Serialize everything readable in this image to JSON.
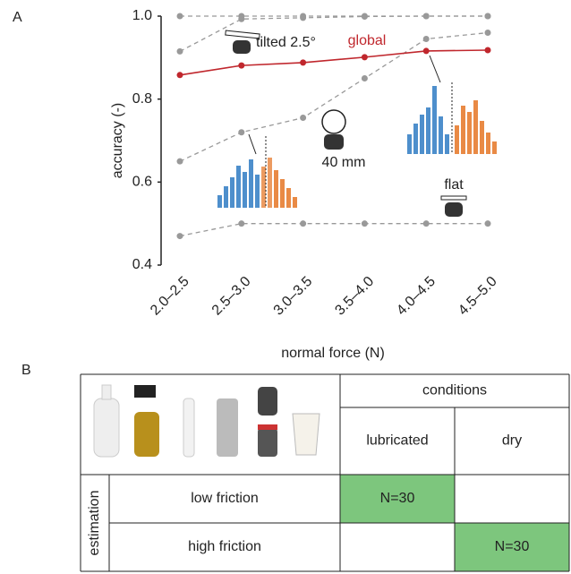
{
  "panel_labels": [
    "A",
    "B"
  ],
  "chart_data": {
    "type": "line",
    "x_label": "normal force (N)",
    "y_label": "accuracy (-)",
    "categories": [
      "2.0–2.5",
      "2.5–3.0",
      "3.0–3.5",
      "3.5–4.0",
      "4.0–4.5",
      "4.5–5.0"
    ],
    "ylim": [
      0.4,
      1.0
    ],
    "yticks": [
      0.4,
      0.6,
      0.8,
      {
        "value": 1.0,
        "label": "1.0"
      }
    ],
    "series": [
      {
        "color": "#999999",
        "dashed": true,
        "values": [
          1.0,
          1.0,
          1.0,
          1.0,
          1.0,
          1.0
        ]
      },
      {
        "color": "#999999",
        "dashed": true,
        "values": [
          0.915,
          0.993,
          0.996,
          0.999,
          1.0,
          1.0
        ]
      },
      {
        "color": "#999999",
        "dashed": true,
        "values": [
          0.65,
          0.72,
          0.755,
          0.85,
          0.945,
          0.96
        ]
      },
      {
        "color": "#999999",
        "dashed": true,
        "values": [
          0.47,
          0.5,
          0.5,
          0.5,
          0.5,
          0.5
        ]
      },
      {
        "name": "global",
        "color": "#c0272d",
        "dashed": false,
        "values": [
          0.858,
          0.881,
          0.888,
          0.901,
          0.916,
          0.918
        ]
      }
    ],
    "annotations": [
      "tilted 2.5°",
      "40 mm",
      "flat"
    ]
  },
  "table": {
    "header": "conditions",
    "columns": [
      "lubricated",
      "dry"
    ],
    "row_group": "estimation",
    "highlight_color": "#7dc67d",
    "rows": [
      {
        "label": "low friction",
        "cells": [
          "N=30",
          null
        ]
      },
      {
        "label": "high friction",
        "cells": [
          null,
          "N=30"
        ]
      }
    ]
  }
}
